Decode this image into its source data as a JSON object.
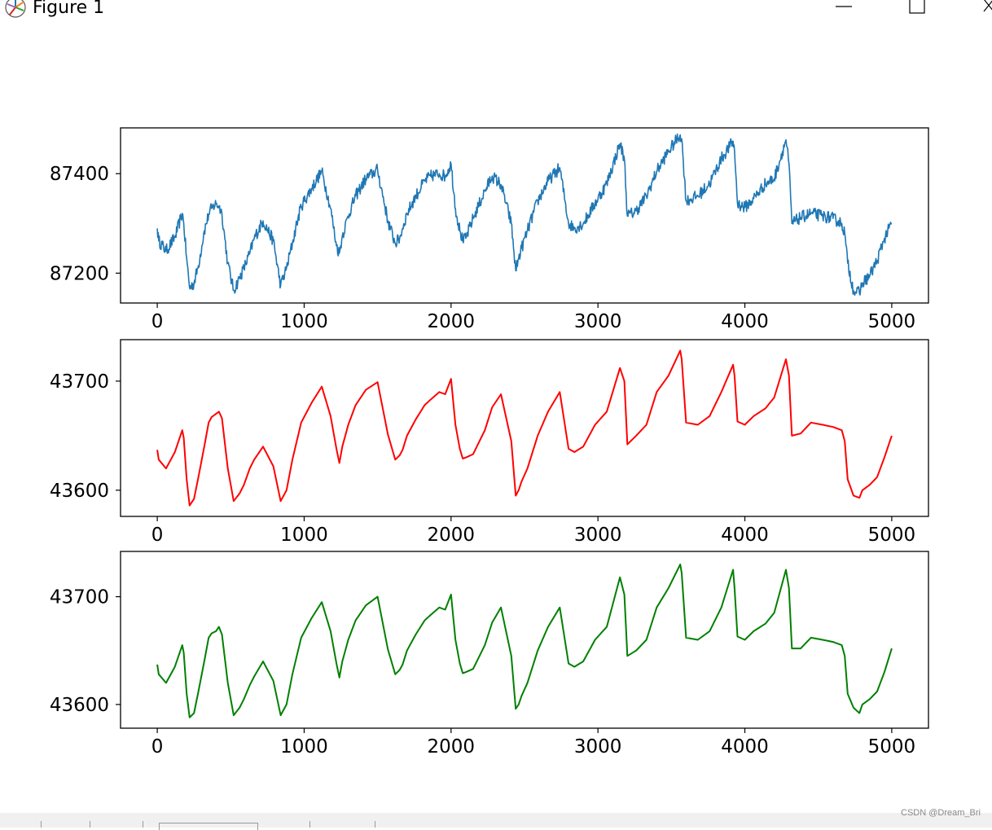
{
  "window": {
    "title": "Figure 1"
  },
  "watermark": "CSDN @Dream_Bri",
  "chart_data": [
    {
      "type": "line",
      "color": "#1f77b4",
      "noisy": true,
      "xlim": [
        -250,
        5250
      ],
      "ylim": [
        87140,
        87492
      ],
      "xticks": [
        0,
        1000,
        2000,
        3000,
        4000,
        5000
      ],
      "yticks": [
        87200,
        87400
      ],
      "x": [
        0,
        10,
        60,
        120,
        170,
        180,
        200,
        220,
        250,
        280,
        320,
        350,
        370,
        400,
        420,
        440,
        480,
        520,
        560,
        590,
        630,
        660,
        720,
        790,
        840,
        880,
        920,
        950,
        980,
        1050,
        1120,
        1180,
        1220,
        1240,
        1260,
        1300,
        1350,
        1420,
        1500,
        1570,
        1620,
        1650,
        1670,
        1700,
        1760,
        1820,
        1860,
        1920,
        1960,
        2000,
        2030,
        2060,
        2080,
        2100,
        2150,
        2230,
        2280,
        2340,
        2410,
        2440,
        2460,
        2480,
        2520,
        2590,
        2660,
        2740,
        2800,
        2840,
        2900,
        2980,
        3060,
        3150,
        3180,
        3200,
        3260,
        3330,
        3400,
        3480,
        3560,
        3570,
        3600,
        3680,
        3760,
        3840,
        3920,
        3930,
        3950,
        4000,
        4060,
        4140,
        4200,
        4280,
        4300,
        4320,
        4380,
        4450,
        4530,
        4600,
        4660,
        4680,
        4700,
        4740,
        4780,
        4800,
        4850,
        4900,
        4950,
        5000
      ],
      "y": [
        87290,
        87265,
        87245,
        87272,
        87320,
        87300,
        87230,
        87170,
        87180,
        87215,
        87285,
        87318,
        87330,
        87340,
        87335,
        87320,
        87220,
        87165,
        87190,
        87210,
        87240,
        87270,
        87305,
        87265,
        87175,
        87210,
        87260,
        87300,
        87335,
        87370,
        87405,
        87330,
        87255,
        87240,
        87275,
        87315,
        87355,
        87390,
        87408,
        87305,
        87260,
        87270,
        87290,
        87320,
        87355,
        87385,
        87395,
        87400,
        87395,
        87420,
        87330,
        87285,
        87265,
        87270,
        87310,
        87365,
        87395,
        87378,
        87300,
        87205,
        87230,
        87250,
        87285,
        87345,
        87385,
        87412,
        87300,
        87290,
        87300,
        87340,
        87380,
        87460,
        87430,
        87315,
        87325,
        87355,
        87405,
        87445,
        87478,
        87470,
        87345,
        87355,
        87380,
        87430,
        87465,
        87445,
        87340,
        87332,
        87350,
        87380,
        87390,
        87468,
        87420,
        87300,
        87312,
        87320,
        87315,
        87310,
        87300,
        87280,
        87220,
        87165,
        87160,
        87180,
        87195,
        87225,
        87270,
        87300
      ]
    },
    {
      "type": "line",
      "color": "#ff0000",
      "noisy": false,
      "xlim": [
        -250,
        5250
      ],
      "ylim": [
        43576,
        43738
      ],
      "xticks": [
        0,
        1000,
        2000,
        3000,
        4000,
        5000
      ],
      "yticks": [
        43600,
        43700
      ],
      "x": [
        0,
        10,
        60,
        120,
        170,
        180,
        200,
        220,
        250,
        280,
        320,
        350,
        370,
        400,
        420,
        440,
        480,
        520,
        560,
        590,
        630,
        660,
        720,
        790,
        840,
        880,
        920,
        950,
        980,
        1050,
        1120,
        1180,
        1220,
        1240,
        1260,
        1300,
        1350,
        1420,
        1500,
        1570,
        1620,
        1650,
        1670,
        1700,
        1760,
        1820,
        1860,
        1920,
        1960,
        2000,
        2030,
        2060,
        2080,
        2100,
        2150,
        2230,
        2280,
        2340,
        2410,
        2440,
        2460,
        2480,
        2520,
        2590,
        2660,
        2740,
        2800,
        2840,
        2900,
        2980,
        3060,
        3150,
        3180,
        3200,
        3260,
        3330,
        3400,
        3480,
        3560,
        3570,
        3600,
        3680,
        3760,
        3840,
        3920,
        3930,
        3950,
        4000,
        4060,
        4140,
        4200,
        4280,
        4300,
        4320,
        4380,
        4450,
        4530,
        4600,
        4660,
        4680,
        4700,
        4740,
        4780,
        4800,
        4850,
        4900,
        4950,
        5000
      ],
      "y": [
        43637,
        43628,
        43620,
        43635,
        43655,
        43648,
        43610,
        43586,
        43592,
        43612,
        43640,
        43662,
        43667,
        43670,
        43672,
        43666,
        43620,
        43590,
        43597,
        43605,
        43620,
        43628,
        43640,
        43622,
        43590,
        43600,
        43628,
        43645,
        43662,
        43680,
        43695,
        43668,
        43638,
        43625,
        43640,
        43660,
        43678,
        43692,
        43699,
        43651,
        43628,
        43632,
        43637,
        43650,
        43665,
        43678,
        43683,
        43690,
        43688,
        43702,
        43660,
        43638,
        43629,
        43630,
        43633,
        43655,
        43676,
        43688,
        43645,
        43595,
        43600,
        43608,
        43620,
        43650,
        43672,
        43690,
        43638,
        43635,
        43640,
        43660,
        43672,
        43712,
        43700,
        43642,
        43650,
        43660,
        43690,
        43705,
        43728,
        43720,
        43662,
        43660,
        43668,
        43690,
        43715,
        43705,
        43663,
        43660,
        43668,
        43675,
        43685,
        43720,
        43705,
        43650,
        43652,
        43662,
        43660,
        43658,
        43655,
        43645,
        43610,
        43595,
        43593,
        43600,
        43605,
        43612,
        43630,
        43650
      ]
    },
    {
      "type": "line",
      "color": "#008000",
      "noisy": false,
      "xlim": [
        -250,
        5250
      ],
      "ylim": [
        43578,
        43742
      ],
      "xticks": [
        0,
        1000,
        2000,
        3000,
        4000,
        5000
      ],
      "yticks": [
        43600,
        43700
      ],
      "x": [
        0,
        10,
        60,
        120,
        170,
        180,
        200,
        220,
        250,
        280,
        320,
        350,
        370,
        400,
        420,
        440,
        480,
        520,
        560,
        590,
        630,
        660,
        720,
        790,
        840,
        880,
        920,
        950,
        980,
        1050,
        1120,
        1180,
        1220,
        1240,
        1260,
        1300,
        1350,
        1420,
        1500,
        1570,
        1620,
        1650,
        1670,
        1700,
        1760,
        1820,
        1860,
        1920,
        1960,
        2000,
        2030,
        2060,
        2080,
        2100,
        2150,
        2230,
        2280,
        2340,
        2410,
        2440,
        2460,
        2480,
        2520,
        2590,
        2660,
        2740,
        2800,
        2840,
        2900,
        2980,
        3060,
        3150,
        3180,
        3200,
        3260,
        3330,
        3400,
        3480,
        3560,
        3570,
        3600,
        3680,
        3760,
        3840,
        3920,
        3930,
        3950,
        4000,
        4060,
        4140,
        4200,
        4280,
        4300,
        4320,
        4380,
        4450,
        4530,
        4600,
        4660,
        4680,
        4700,
        4740,
        4780,
        4800,
        4850,
        4900,
        4950,
        5000
      ],
      "y": [
        43637,
        43628,
        43620,
        43635,
        43655,
        43648,
        43610,
        43588,
        43592,
        43612,
        43640,
        43662,
        43666,
        43668,
        43672,
        43665,
        43620,
        43590,
        43597,
        43605,
        43618,
        43626,
        43640,
        43622,
        43590,
        43600,
        43628,
        43645,
        43662,
        43680,
        43695,
        43668,
        43638,
        43625,
        43640,
        43660,
        43678,
        43692,
        43700,
        43651,
        43628,
        43632,
        43637,
        43650,
        43665,
        43678,
        43683,
        43690,
        43688,
        43702,
        43660,
        43638,
        43629,
        43630,
        43633,
        43655,
        43676,
        43690,
        43645,
        43596,
        43600,
        43608,
        43620,
        43650,
        43672,
        43690,
        43638,
        43635,
        43640,
        43660,
        43672,
        43718,
        43702,
        43645,
        43650,
        43660,
        43690,
        43708,
        43730,
        43722,
        43662,
        43660,
        43668,
        43690,
        43725,
        43708,
        43663,
        43660,
        43668,
        43675,
        43685,
        43725,
        43708,
        43652,
        43652,
        43662,
        43660,
        43658,
        43655,
        43645,
        43610,
        43597,
        43592,
        43600,
        43605,
        43612,
        43630,
        43652
      ]
    }
  ]
}
